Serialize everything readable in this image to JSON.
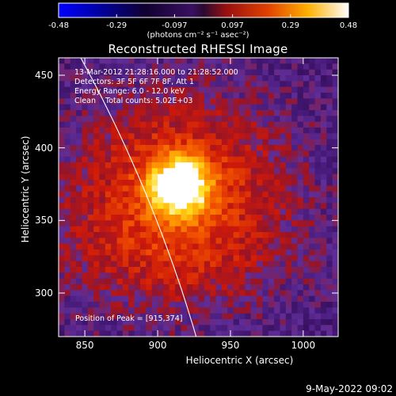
{
  "chart_data": {
    "type": "heatmap",
    "title": "Reconstructed RHESSI Image",
    "xlabel": "Heliocentric X (arcsec)",
    "ylabel": "Heliocentric Y (arcsec)",
    "xlim": [
      832,
      1024
    ],
    "ylim": [
      270,
      462
    ],
    "x_ticks": [
      "850",
      "900",
      "950",
      "1000"
    ],
    "y_ticks": [
      "300",
      "350",
      "400",
      "450"
    ],
    "colorbar": {
      "ticks": [
        "-0.48",
        "-0.29",
        "-0.097",
        "0.097",
        "0.29",
        "0.48"
      ],
      "range": [
        -0.48,
        0.48
      ],
      "unit_label": "(photons cm⁻² s⁻¹ asec⁻²)"
    },
    "peak": {
      "x": 915,
      "y": 374
    },
    "annotations": [
      "13-Mar-2012 21:28:16.000 to 21:28:52.000",
      "Detectors: 3F 5F 6F 7F 8F, Att 1",
      "Energy Range: 6.0 - 12.0 keV",
      "Clean    Total counts: 5.02E+03"
    ],
    "peak_label": "Position of Peak = [915,374]",
    "colormap": [
      "#0000ff",
      "#00002a",
      "#3a1060",
      "#5d2e8c",
      "#c21e10",
      "#ff7a00",
      "#ffd000",
      "#ffffff"
    ]
  },
  "footer": {
    "date": "9-May-2022 09:02"
  }
}
